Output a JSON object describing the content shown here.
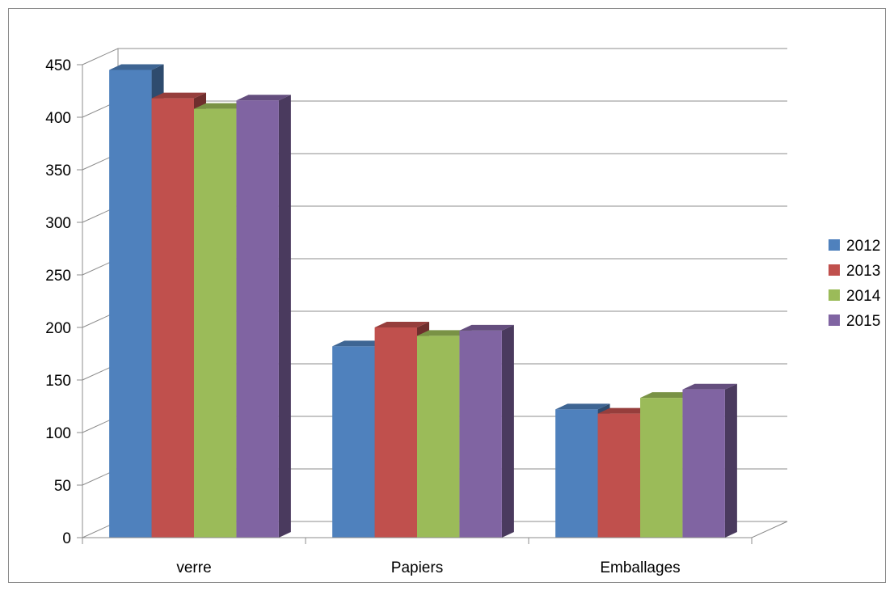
{
  "chart_data": {
    "type": "bar",
    "style": "3d-clustered-column",
    "title": "",
    "xlabel": "",
    "ylabel": "",
    "categories": [
      "verre",
      "Papiers",
      "Emballages"
    ],
    "series": [
      {
        "name": "2012",
        "color": "#4F81BD",
        "values": [
          445,
          182,
          122
        ]
      },
      {
        "name": "2013",
        "color": "#C0504D",
        "values": [
          418,
          200,
          118
        ]
      },
      {
        "name": "2014",
        "color": "#9BBB59",
        "values": [
          408,
          192,
          133
        ]
      },
      {
        "name": "2015",
        "color": "#8064A2",
        "values": [
          416,
          197,
          141
        ]
      }
    ],
    "ylim": [
      0,
      450
    ],
    "yticks": [
      "0",
      "50",
      "100",
      "150",
      "200",
      "250",
      "300",
      "350",
      "400",
      "450"
    ],
    "grid": true,
    "legend": "right"
  }
}
